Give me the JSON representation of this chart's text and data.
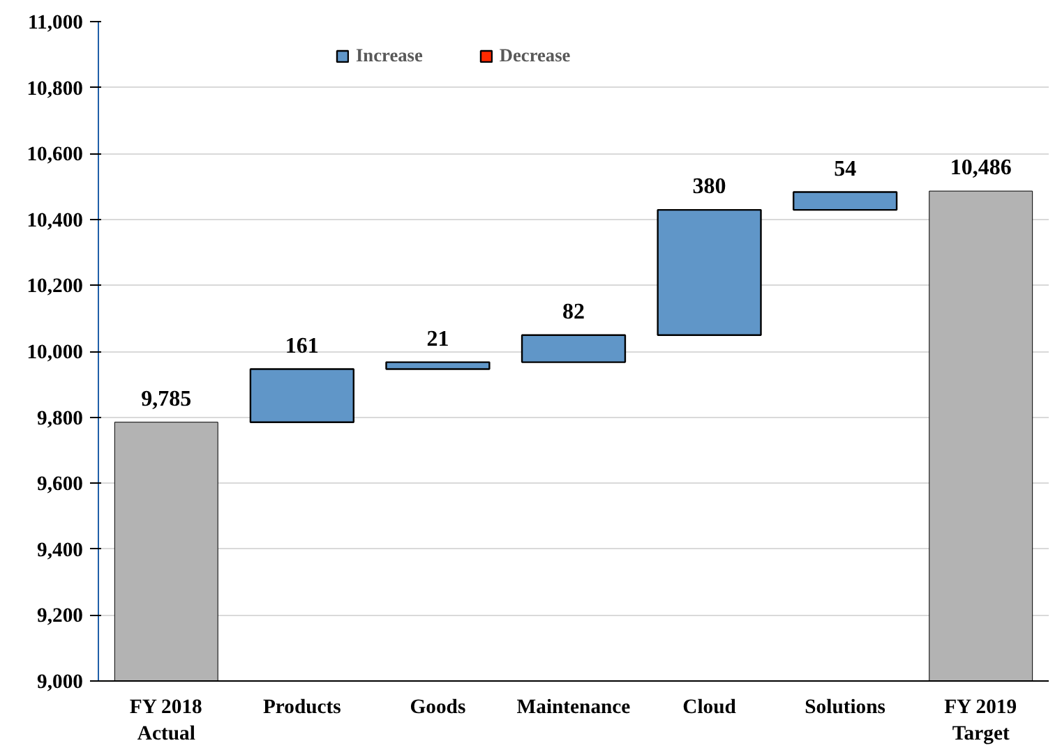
{
  "chart_data": {
    "type": "bar",
    "categories": [
      "FY 2018 Actual",
      "Products",
      "Goods",
      "Maintenance",
      "Cloud",
      "Solutions",
      "FY 2019 Target"
    ],
    "series": [
      {
        "color": "#b3b3b3",
        "values": [
          9785,
          null,
          null,
          null,
          null,
          null,
          10486
        ],
        "value_labels": [
          "9,785",
          null,
          null,
          null,
          null,
          null,
          "10,486"
        ]
      },
      {
        "name": "Increase",
        "color": "#6096c8",
        "values": [
          null,
          161,
          21,
          82,
          380,
          54,
          null
        ],
        "base": [
          null,
          9785,
          9946,
          9967,
          10049,
          10429,
          null
        ],
        "value_labels": [
          null,
          "161",
          "21",
          "82",
          "380",
          "54",
          null
        ]
      },
      {
        "name": "Decrease",
        "color": "#ff2a00",
        "values": [
          null,
          null,
          null,
          null,
          null,
          null,
          null
        ]
      }
    ],
    "ylim": [
      9000,
      11000
    ],
    "yticks": [
      {
        "value": 9000,
        "label": "9,000"
      },
      {
        "value": 9200,
        "label": "9,200"
      },
      {
        "value": 9400,
        "label": "9,400"
      },
      {
        "value": 9600,
        "label": "9,600"
      },
      {
        "value": 9800,
        "label": "9,800"
      },
      {
        "value": 10000,
        "label": "10,000"
      },
      {
        "value": 10200,
        "label": "10,200"
      },
      {
        "value": 10400,
        "label": "10,400"
      },
      {
        "value": 10600,
        "label": "10,600"
      },
      {
        "value": 10800,
        "label": "10,800"
      },
      {
        "value": 11000,
        "label": "11,000"
      }
    ],
    "grid": "y",
    "legend": "top left"
  }
}
